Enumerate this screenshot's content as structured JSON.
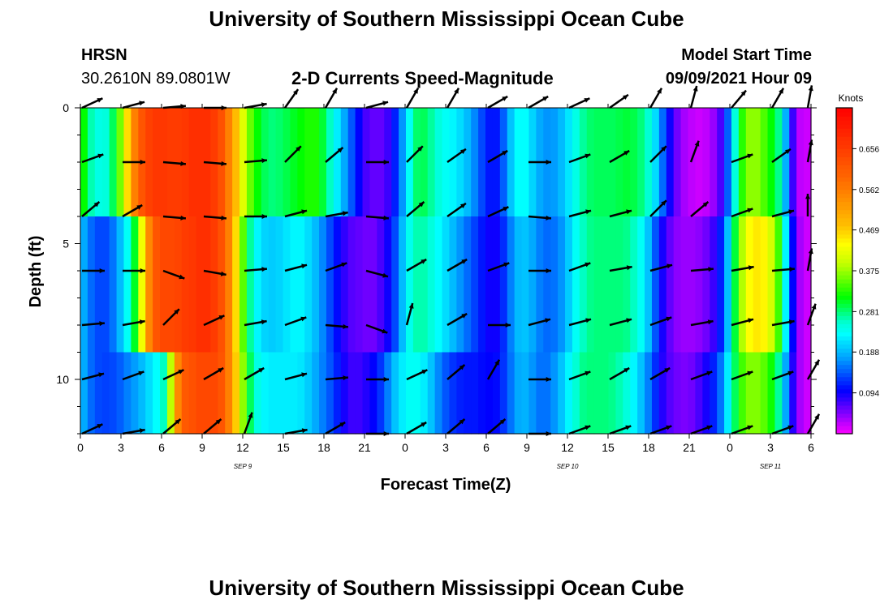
{
  "header": {
    "title": "University of Southern Mississippi Ocean Cube",
    "footer_title": "University of Southern Mississippi Ocean Cube",
    "station_name": "HRSN",
    "station_coords": "30.2610N  89.0801W",
    "subtitle": "2-D Currents Speed-Magnitude",
    "model_label": "Model Start Time",
    "model_time": "09/09/2021 Hour 09"
  },
  "chart_data": {
    "type": "heatmap",
    "title": "2-D Currents Speed-Magnitude",
    "xlabel": "Forecast Time(Z)",
    "ylabel": "Depth (ft)",
    "x_range_hours": [
      0,
      54
    ],
    "ylim": [
      0,
      12
    ],
    "y_inverted": true,
    "x_tick_hours": [
      0,
      3,
      6,
      9,
      12,
      15,
      18,
      21,
      24,
      27,
      30,
      33,
      36,
      39,
      42,
      45,
      48,
      51,
      54
    ],
    "x_tick_labels": [
      "0",
      "3",
      "6",
      "9",
      "12",
      "15",
      "18",
      "21",
      "0",
      "3",
      "6",
      "9",
      "12",
      "15",
      "18",
      "21",
      "0",
      "3",
      "6"
    ],
    "y_ticks": [
      0,
      5,
      10
    ],
    "y_tick_labels": [
      "0",
      "5",
      "10"
    ],
    "date_labels": [
      {
        "hour": 12,
        "text": "SEP 9"
      },
      {
        "hour": 36,
        "text": "SEP 10"
      },
      {
        "hour": 51,
        "text": "SEP 11"
      }
    ],
    "colorbar": {
      "unit": "Knots",
      "min": 0,
      "max": 0.75,
      "tick_values": [
        0.094,
        0.188,
        0.281,
        0.375,
        0.469,
        0.562,
        0.656
      ],
      "tick_labels": [
        "0.094",
        "0.188",
        "0.281",
        "0.375",
        "0.469",
        "0.562",
        "0.656"
      ]
    },
    "depth_bands": [
      {
        "name": "surface",
        "depth_range": [
          0,
          4
        ],
        "speed_by_half_hour": [
          0.35,
          0.28,
          0.25,
          0.24,
          0.26,
          0.32,
          0.4,
          0.52,
          0.6,
          0.64,
          0.66,
          0.67,
          0.66,
          0.65,
          0.66,
          0.67,
          0.68,
          0.68,
          0.67,
          0.65,
          0.6,
          0.52,
          0.45,
          0.38,
          0.33,
          0.3,
          0.28,
          0.28,
          0.29,
          0.3,
          0.31,
          0.32,
          0.33,
          0.32,
          0.28,
          0.24,
          0.2,
          0.16,
          0.12,
          0.08,
          0.06,
          0.06,
          0.06,
          0.09,
          0.14,
          0.2,
          0.27,
          0.3,
          0.28,
          0.26,
          0.24,
          0.23,
          0.22,
          0.2,
          0.18,
          0.15,
          0.12,
          0.1,
          0.12,
          0.17,
          0.22,
          0.24,
          0.22,
          0.19,
          0.17,
          0.17,
          0.18,
          0.2,
          0.23,
          0.26,
          0.28,
          0.29,
          0.29,
          0.29,
          0.29,
          0.3,
          0.3,
          0.29,
          0.27,
          0.24,
          0.18,
          0.12,
          0.07,
          0.04,
          0.03,
          0.02,
          0.02,
          0.03,
          0.05,
          0.09,
          0.2,
          0.3,
          0.36,
          0.38,
          0.36,
          0.33,
          0.3,
          0.25,
          0.12,
          0.03,
          0.02,
          0.02
        ]
      },
      {
        "name": "middle",
        "depth_range": [
          4,
          9
        ],
        "speed_by_half_hour": [
          0.2,
          0.16,
          0.14,
          0.13,
          0.14,
          0.17,
          0.21,
          0.26,
          0.35,
          0.5,
          0.6,
          0.63,
          0.64,
          0.64,
          0.65,
          0.66,
          0.67,
          0.68,
          0.67,
          0.65,
          0.6,
          0.52,
          0.4,
          0.3,
          0.24,
          0.21,
          0.2,
          0.2,
          0.21,
          0.22,
          0.23,
          0.22,
          0.2,
          0.18,
          0.15,
          0.12,
          0.09,
          0.07,
          0.06,
          0.06,
          0.05,
          0.06,
          0.08,
          0.11,
          0.16,
          0.22,
          0.26,
          0.27,
          0.26,
          0.24,
          0.22,
          0.2,
          0.18,
          0.16,
          0.14,
          0.12,
          0.1,
          0.09,
          0.1,
          0.14,
          0.18,
          0.2,
          0.19,
          0.17,
          0.15,
          0.15,
          0.16,
          0.18,
          0.22,
          0.25,
          0.27,
          0.28,
          0.28,
          0.28,
          0.28,
          0.28,
          0.27,
          0.25,
          0.22,
          0.17,
          0.11,
          0.07,
          0.05,
          0.04,
          0.04,
          0.04,
          0.05,
          0.06,
          0.09,
          0.14,
          0.25,
          0.35,
          0.42,
          0.45,
          0.45,
          0.43,
          0.38,
          0.3,
          0.15,
          0.05,
          0.02,
          0.02
        ]
      },
      {
        "name": "bottom",
        "depth_range": [
          9,
          12
        ],
        "speed_by_half_hour": [
          0.2,
          0.16,
          0.14,
          0.13,
          0.13,
          0.14,
          0.15,
          0.17,
          0.18,
          0.2,
          0.22,
          0.24,
          0.28,
          0.5,
          0.6,
          0.62,
          0.63,
          0.64,
          0.64,
          0.63,
          0.6,
          0.52,
          0.42,
          0.32,
          0.26,
          0.23,
          0.22,
          0.22,
          0.22,
          0.22,
          0.22,
          0.21,
          0.19,
          0.17,
          0.15,
          0.13,
          0.1,
          0.08,
          0.07,
          0.08,
          0.09,
          0.11,
          0.14,
          0.18,
          0.21,
          0.23,
          0.24,
          0.23,
          0.21,
          0.18,
          0.15,
          0.13,
          0.12,
          0.11,
          0.11,
          0.11,
          0.1,
          0.1,
          0.11,
          0.14,
          0.17,
          0.19,
          0.18,
          0.16,
          0.15,
          0.16,
          0.18,
          0.21,
          0.24,
          0.27,
          0.28,
          0.28,
          0.28,
          0.28,
          0.27,
          0.26,
          0.24,
          0.21,
          0.18,
          0.14,
          0.1,
          0.07,
          0.06,
          0.05,
          0.05,
          0.06,
          0.08,
          0.1,
          0.13,
          0.18,
          0.26,
          0.32,
          0.36,
          0.37,
          0.36,
          0.34,
          0.3,
          0.24,
          0.12,
          0.05,
          0.02,
          0.02
        ]
      }
    ],
    "vectors": {
      "time_hours": [
        0,
        3,
        6,
        9,
        12,
        15,
        18,
        21,
        24,
        27,
        30,
        33,
        36,
        39,
        42,
        45,
        48,
        51,
        54
      ],
      "depths_ft": [
        0,
        2,
        4,
        6,
        8,
        10,
        12
      ],
      "direction_deg_by_depth": [
        [
          25,
          15,
          5,
          0,
          10,
          55,
          60,
          15,
          60,
          60,
          30,
          30,
          25,
          35,
          60,
          75,
          50,
          60,
          80
        ],
        [
          20,
          0,
          -5,
          -5,
          5,
          45,
          40,
          0,
          45,
          35,
          30,
          0,
          20,
          30,
          45,
          70,
          20,
          35,
          80
        ],
        [
          40,
          30,
          -5,
          -5,
          0,
          15,
          10,
          -5,
          40,
          35,
          25,
          -5,
          15,
          15,
          45,
          40,
          20,
          15,
          90
        ],
        [
          0,
          0,
          -20,
          -10,
          5,
          15,
          20,
          -15,
          30,
          30,
          20,
          0,
          20,
          10,
          15,
          5,
          10,
          5,
          80
        ],
        [
          5,
          10,
          45,
          25,
          10,
          20,
          -5,
          -20,
          75,
          30,
          0,
          15,
          15,
          15,
          20,
          10,
          15,
          10,
          70
        ],
        [
          15,
          20,
          25,
          30,
          30,
          15,
          5,
          0,
          25,
          40,
          60,
          0,
          20,
          30,
          30,
          20,
          20,
          20,
          60
        ],
        [
          25,
          10,
          40,
          40,
          70,
          10,
          30,
          0,
          30,
          40,
          40,
          0,
          20,
          20,
          20,
          20,
          20,
          20,
          60
        ]
      ]
    }
  }
}
